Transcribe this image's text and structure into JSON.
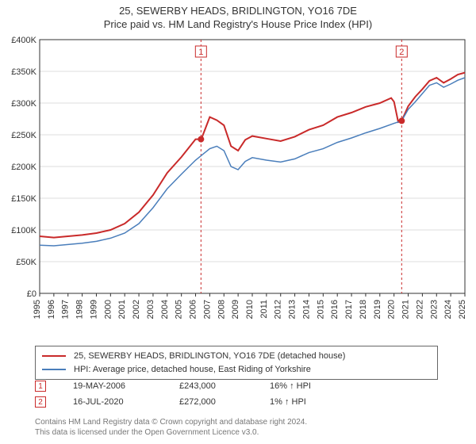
{
  "title": "25, SEWERBY HEADS, BRIDLINGTON, YO16 7DE",
  "subtitle": "Price paid vs. HM Land Registry's House Price Index (HPI)",
  "chart": {
    "type": "line",
    "background_color": "#ffffff",
    "grid_color": "#dddddd",
    "axis_color": "#333333",
    "ylim": [
      0,
      400000
    ],
    "ytick_step": 50000,
    "yticks": [
      "£0",
      "£50K",
      "£100K",
      "£150K",
      "£200K",
      "£250K",
      "£300K",
      "£350K",
      "£400K"
    ],
    "xlim": [
      1995,
      2025
    ],
    "xticks": [
      1995,
      1996,
      1997,
      1998,
      1999,
      2000,
      2001,
      2002,
      2003,
      2004,
      2005,
      2006,
      2007,
      2008,
      2009,
      2010,
      2011,
      2012,
      2013,
      2014,
      2015,
      2016,
      2017,
      2018,
      2019,
      2020,
      2021,
      2022,
      2023,
      2024,
      2025
    ],
    "series": [
      {
        "name": "property",
        "label": "25, SEWERBY HEADS, BRIDLINGTON, YO16 7DE (detached house)",
        "color": "#c92a2a",
        "line_width": 2,
        "points": [
          [
            1995,
            90000
          ],
          [
            1996,
            88000
          ],
          [
            1997,
            90000
          ],
          [
            1998,
            92000
          ],
          [
            1999,
            95000
          ],
          [
            2000,
            100000
          ],
          [
            2001,
            110000
          ],
          [
            2002,
            128000
          ],
          [
            2003,
            155000
          ],
          [
            2004,
            190000
          ],
          [
            2005,
            215000
          ],
          [
            2006,
            243000
          ],
          [
            2006.4,
            243000
          ],
          [
            2007,
            278000
          ],
          [
            2007.5,
            273000
          ],
          [
            2008,
            265000
          ],
          [
            2008.5,
            232000
          ],
          [
            2009,
            225000
          ],
          [
            2009.5,
            242000
          ],
          [
            2010,
            248000
          ],
          [
            2011,
            244000
          ],
          [
            2012,
            240000
          ],
          [
            2013,
            247000
          ],
          [
            2014,
            258000
          ],
          [
            2015,
            265000
          ],
          [
            2016,
            278000
          ],
          [
            2017,
            285000
          ],
          [
            2018,
            294000
          ],
          [
            2019,
            300000
          ],
          [
            2019.8,
            308000
          ],
          [
            2020,
            302000
          ],
          [
            2020.3,
            270000
          ],
          [
            2020.54,
            272000
          ],
          [
            2021,
            295000
          ],
          [
            2021.5,
            310000
          ],
          [
            2022,
            322000
          ],
          [
            2022.5,
            335000
          ],
          [
            2023,
            340000
          ],
          [
            2023.5,
            332000
          ],
          [
            2024,
            338000
          ],
          [
            2024.5,
            345000
          ],
          [
            2025,
            348000
          ]
        ]
      },
      {
        "name": "hpi",
        "label": "HPI: Average price, detached house, East Riding of Yorkshire",
        "color": "#4a7ebb",
        "line_width": 1.5,
        "points": [
          [
            1995,
            76000
          ],
          [
            1996,
            75000
          ],
          [
            1997,
            77000
          ],
          [
            1998,
            79000
          ],
          [
            1999,
            82000
          ],
          [
            2000,
            87000
          ],
          [
            2001,
            95000
          ],
          [
            2002,
            110000
          ],
          [
            2003,
            135000
          ],
          [
            2004,
            165000
          ],
          [
            2005,
            188000
          ],
          [
            2006,
            210000
          ],
          [
            2007,
            228000
          ],
          [
            2007.5,
            232000
          ],
          [
            2008,
            225000
          ],
          [
            2008.5,
            200000
          ],
          [
            2009,
            195000
          ],
          [
            2009.5,
            208000
          ],
          [
            2010,
            214000
          ],
          [
            2011,
            210000
          ],
          [
            2012,
            207000
          ],
          [
            2013,
            212000
          ],
          [
            2014,
            222000
          ],
          [
            2015,
            228000
          ],
          [
            2016,
            238000
          ],
          [
            2017,
            245000
          ],
          [
            2018,
            253000
          ],
          [
            2019,
            260000
          ],
          [
            2020,
            268000
          ],
          [
            2020.54,
            272000
          ],
          [
            2021,
            290000
          ],
          [
            2021.5,
            302000
          ],
          [
            2022,
            315000
          ],
          [
            2022.5,
            328000
          ],
          [
            2023,
            332000
          ],
          [
            2023.5,
            325000
          ],
          [
            2024,
            330000
          ],
          [
            2024.5,
            336000
          ],
          [
            2025,
            340000
          ]
        ]
      }
    ],
    "sale_markers": [
      {
        "n": "1",
        "x": 2006.38,
        "y": 243000,
        "vline_color": "#c92a2a",
        "dash": "3,3"
      },
      {
        "n": "2",
        "x": 2020.54,
        "y": 272000,
        "vline_color": "#c92a2a",
        "dash": "3,3"
      }
    ],
    "label_fontsize": 11
  },
  "legend": {
    "series0": "25, SEWERBY HEADS, BRIDLINGTON, YO16 7DE (detached house)",
    "series1": "HPI: Average price, detached house, East Riding of Yorkshire"
  },
  "sales": [
    {
      "n": "1",
      "date": "19-MAY-2006",
      "price": "£243,000",
      "hpi_diff": "16% ↑ HPI"
    },
    {
      "n": "2",
      "date": "16-JUL-2020",
      "price": "£272,000",
      "hpi_diff": "1% ↑ HPI"
    }
  ],
  "footer": {
    "line1": "Contains HM Land Registry data © Crown copyright and database right 2024.",
    "line2": "This data is licensed under the Open Government Licence v3.0."
  }
}
